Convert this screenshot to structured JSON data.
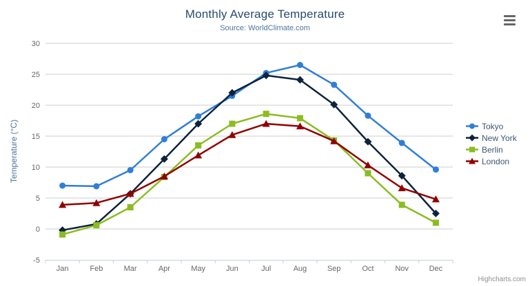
{
  "chart_data": {
    "type": "line",
    "title": "Monthly Average Temperature",
    "subtitle": "Source: WorldClimate.com",
    "categories": [
      "Jan",
      "Feb",
      "Mar",
      "Apr",
      "May",
      "Jun",
      "Jul",
      "Aug",
      "Sep",
      "Oct",
      "Nov",
      "Dec"
    ],
    "xlabel": "",
    "ylabel": "Temperature (°C)",
    "ylim": [
      -5,
      30
    ],
    "ytick_interval": 5,
    "grid": true,
    "legend_position": "right",
    "series": [
      {
        "name": "Tokyo",
        "color": "#2f7ed8",
        "marker": "circle",
        "values": [
          7.0,
          6.9,
          9.5,
          14.5,
          18.2,
          21.5,
          25.2,
          26.5,
          23.3,
          18.3,
          13.9,
          9.6
        ]
      },
      {
        "name": "New York",
        "color": "#0d233a",
        "marker": "diamond",
        "values": [
          -0.2,
          0.8,
          5.7,
          11.3,
          17.0,
          22.0,
          24.8,
          24.1,
          20.1,
          14.1,
          8.6,
          2.5
        ]
      },
      {
        "name": "Berlin",
        "color": "#8bbc21",
        "marker": "square",
        "values": [
          -0.9,
          0.6,
          3.5,
          8.4,
          13.5,
          17.0,
          18.6,
          17.9,
          14.3,
          9.0,
          3.9,
          1.0
        ]
      },
      {
        "name": "London",
        "color": "#910000",
        "marker": "triangle",
        "values": [
          3.9,
          4.2,
          5.7,
          8.5,
          11.9,
          15.2,
          17.0,
          16.6,
          14.2,
          10.3,
          6.6,
          4.8
        ]
      }
    ]
  },
  "export_menu": {
    "icon": "hamburger-menu-icon"
  },
  "credits": {
    "label": "Highcharts.com"
  },
  "colors": {
    "title": "#274b6d",
    "subtitle": "#4d759e",
    "axis_label": "#666666",
    "axis_line": "#c0d0e0",
    "gridline": "#cccccc",
    "legend_text": "#3e576f",
    "credits": "#909090",
    "menu_icon": "#666666"
  }
}
